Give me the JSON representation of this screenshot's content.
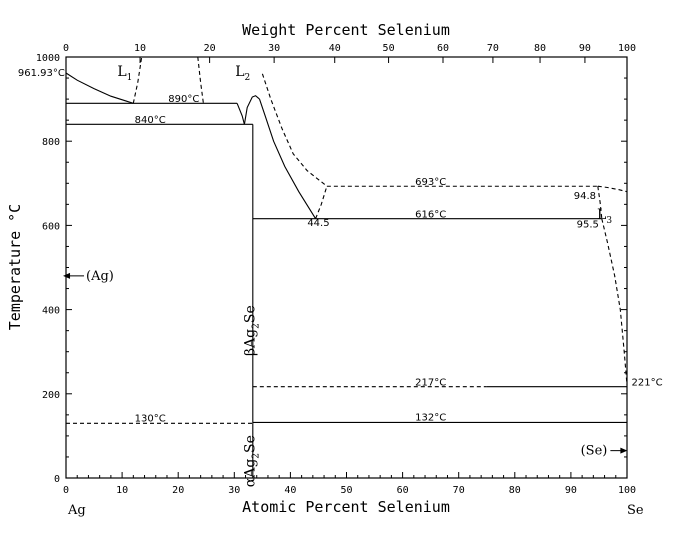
{
  "chart_data": {
    "type": "phase-diagram",
    "title": "",
    "top_axis": {
      "title": "Weight Percent Selenium",
      "ticks": [
        0,
        10,
        20,
        30,
        40,
        50,
        60,
        70,
        80,
        90,
        100
      ],
      "tick_at_mole": [
        0,
        13.2,
        25.6,
        37.1,
        47.9,
        57.5,
        67.2,
        76.1,
        84.5,
        92.5,
        100
      ]
    },
    "x_axis": {
      "title": "Atomic Percent Selenium",
      "range": [
        0,
        100
      ],
      "ticks": [
        0,
        10,
        20,
        30,
        40,
        50,
        60,
        70,
        80,
        90,
        100
      ],
      "left_element": "Ag",
      "right_element": "Se"
    },
    "y_axis": {
      "title": "Temperature °C",
      "range": [
        0,
        1000
      ],
      "ticks": [
        0,
        200,
        400,
        600,
        800,
        1000
      ]
    },
    "phases": [
      {
        "name": "L",
        "sub": "1",
        "x": 10.5,
        "y": 955
      },
      {
        "name": "L",
        "sub": "2",
        "x": 31.5,
        "y": 955
      },
      {
        "name": "L",
        "sub": "3",
        "x": 96.0,
        "y": 615
      },
      {
        "name": "βAg",
        "sub": "2",
        "post": "Se",
        "x": 33.6,
        "y": 350,
        "rotate": true
      },
      {
        "name": "αAg",
        "sub": "2",
        "post": "Se",
        "x": 33.6,
        "y": 40,
        "rotate": true
      }
    ],
    "annotations": [
      {
        "text": "961.93°C",
        "x": -0.2,
        "y": 955,
        "anchor": "end"
      },
      {
        "text": "890°C",
        "x": 21,
        "y": 893,
        "anchor": "middle"
      },
      {
        "text": "840°C",
        "x": 15,
        "y": 843,
        "anchor": "middle"
      },
      {
        "text": "693°C",
        "x": 65,
        "y": 696,
        "anchor": "middle"
      },
      {
        "text": "616°C",
        "x": 65,
        "y": 619,
        "anchor": "middle"
      },
      {
        "text": "44.5",
        "x": 45,
        "y": 598,
        "anchor": "middle"
      },
      {
        "text": "94.8",
        "x": 92.5,
        "y": 663,
        "anchor": "middle"
      },
      {
        "text": "95.5",
        "x": 93.0,
        "y": 595,
        "anchor": "middle"
      },
      {
        "text": "217°C",
        "x": 65,
        "y": 220,
        "anchor": "middle"
      },
      {
        "text": "221°C",
        "x": 100.8,
        "y": 220,
        "anchor": "start"
      },
      {
        "text": "130°C",
        "x": 15,
        "y": 134,
        "anchor": "middle"
      },
      {
        "text": "132°C",
        "x": 65,
        "y": 136,
        "anchor": "middle"
      }
    ],
    "side_labels": [
      {
        "text": "(Ag)",
        "x": 2.5,
        "y": 480,
        "arrow": "left"
      },
      {
        "text": "(Se)",
        "x": 96.5,
        "y": 65,
        "arrow": "right"
      }
    ],
    "curves": [
      {
        "name": "liquidus-ag",
        "style": "solid",
        "points": [
          [
            0,
            961.93
          ],
          [
            2,
            945
          ],
          [
            5,
            925
          ],
          [
            8,
            907
          ],
          [
            12,
            890
          ]
        ]
      },
      {
        "name": "liquidus-l1-upper",
        "style": "dash",
        "points": [
          [
            12,
            890
          ],
          [
            12.8,
            940
          ],
          [
            13.5,
            1000
          ]
        ]
      },
      {
        "name": "l1-l2-gap-left",
        "style": "dash",
        "points": [
          [
            23.5,
            1000
          ],
          [
            24,
            940
          ],
          [
            24.5,
            890
          ]
        ]
      },
      {
        "name": "liquidus-ag2se-left",
        "style": "solid",
        "points": [
          [
            30.5,
            890
          ],
          [
            31.4,
            860
          ],
          [
            31.8,
            840
          ]
        ]
      },
      {
        "name": "liquidus-ag2se-peak",
        "style": "solid",
        "points": [
          [
            31.8,
            840
          ],
          [
            32.3,
            880
          ],
          [
            33.2,
            905
          ],
          [
            33.8,
            908
          ],
          [
            34.5,
            900
          ]
        ]
      },
      {
        "name": "liquidus-ag2se-right",
        "style": "solid",
        "points": [
          [
            34.5,
            900
          ],
          [
            35.5,
            860
          ],
          [
            37,
            800
          ],
          [
            39,
            740
          ],
          [
            41.5,
            680
          ],
          [
            44.5,
            616
          ]
        ]
      },
      {
        "name": "miscibility-l2-dome",
        "style": "dash",
        "points": [
          [
            35,
            960
          ],
          [
            36.5,
            900
          ],
          [
            38.5,
            830
          ],
          [
            40.5,
            770
          ],
          [
            43,
            730
          ],
          [
            46.5,
            693
          ]
        ]
      },
      {
        "name": "miscibility-l2-lower",
        "style": "dash",
        "points": [
          [
            44.5,
            616
          ],
          [
            45.5,
            650
          ],
          [
            46.5,
            693
          ]
        ]
      },
      {
        "name": "miscibility-l3-dome",
        "style": "dash",
        "points": [
          [
            94.8,
            693
          ],
          [
            96.5,
            690
          ],
          [
            98.5,
            685
          ],
          [
            100,
            680
          ]
        ]
      },
      {
        "name": "liquidus-se",
        "style": "dash",
        "points": [
          [
            95.5,
            616
          ],
          [
            96.5,
            560
          ],
          [
            97.8,
            480
          ],
          [
            98.8,
            400
          ],
          [
            99.5,
            300
          ],
          [
            100,
            221
          ]
        ]
      },
      {
        "name": "liquidus-se-upper",
        "style": "dash",
        "points": [
          [
            94.8,
            693
          ],
          [
            95.2,
            655
          ],
          [
            95.5,
            616
          ]
        ]
      }
    ],
    "isotherms": [
      {
        "name": "890",
        "style": "solid",
        "x": [
          0,
          30.5
        ],
        "y": 890
      },
      {
        "name": "840",
        "style": "solid",
        "x": [
          0,
          33.3
        ],
        "y": 840
      },
      {
        "name": "693",
        "style": "dash",
        "x": [
          46.5,
          94.8
        ],
        "y": 693
      },
      {
        "name": "616",
        "style": "solid",
        "x": [
          33.3,
          95.5
        ],
        "y": 616
      },
      {
        "name": "217-dashed",
        "style": "dash",
        "x": [
          33.3,
          75
        ],
        "y": 217
      },
      {
        "name": "217-solid",
        "style": "solid",
        "x": [
          75,
          100
        ],
        "y": 217
      },
      {
        "name": "130",
        "style": "dash",
        "x": [
          0,
          33.3
        ],
        "y": 130
      },
      {
        "name": "132",
        "style": "solid",
        "x": [
          33.3,
          100
        ],
        "y": 132
      }
    ],
    "verticals": [
      {
        "name": "ag2se-line",
        "style": "solid",
        "x": 33.3,
        "y": [
          0,
          840
        ]
      }
    ]
  }
}
